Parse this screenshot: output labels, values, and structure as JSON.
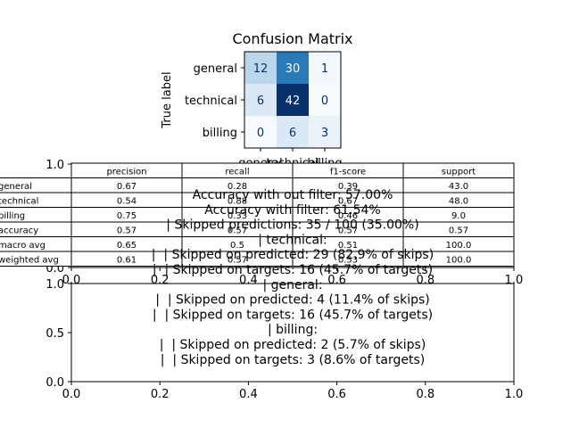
{
  "chart_data": [
    {
      "type": "heatmap",
      "title": "Confusion Matrix",
      "ylabel": "True label",
      "row_labels": [
        "general",
        "technical",
        "billing"
      ],
      "col_labels": [
        "general",
        "technical",
        "billing"
      ],
      "values": [
        [
          12,
          30,
          1
        ],
        [
          6,
          42,
          0
        ],
        [
          0,
          6,
          3
        ]
      ],
      "vmin": 0,
      "vmax": 42
    },
    {
      "type": "table",
      "columns": [
        "precision",
        "recall",
        "f1-score",
        "support"
      ],
      "rows": [
        {
          "label": "general",
          "cells": [
            "0.67",
            "0.28",
            "0.39",
            "43.0"
          ]
        },
        {
          "label": "technical",
          "cells": [
            "0.54",
            "0.88",
            "0.67",
            "48.0"
          ]
        },
        {
          "label": "billing",
          "cells": [
            "0.75",
            "0.33",
            "0.46",
            "9.0"
          ]
        },
        {
          "label": "accuracy",
          "cells": [
            "0.57",
            "0.57",
            "0.57",
            "0.57"
          ]
        },
        {
          "label": "macro avg",
          "cells": [
            "0.65",
            "0.5",
            "0.51",
            "100.0"
          ]
        },
        {
          "label": "weighted avg",
          "cells": [
            "0.61",
            "0.57",
            "0.53",
            "100.0"
          ]
        }
      ],
      "axis_xticks": [
        "0.0",
        "0.2",
        "0.4",
        "0.6",
        "0.8",
        "1.0"
      ],
      "axis_yticks": [
        "0.0",
        "0.5",
        "1.0"
      ]
    },
    {
      "type": "text",
      "lines": [
        "Accuracy with out filter: 57.00%",
        "Accuracy with filter: 61.54%",
        "| Skipped predictions: 35 / 100 (35.00%)",
        "| technical:",
        "|  | Skipped on predicted: 29 (82.9% of skips)",
        "|  | Skipped on targets: 16 (45.7% of targets)",
        "| general:",
        "|  | Skipped on predicted: 4 (11.4% of skips)",
        "|  | Skipped on targets: 16 (45.7% of targets)",
        "| billing:",
        "|  | Skipped on predicted: 2 (5.7% of skips)",
        "|  | Skipped on targets: 3 (8.6% of targets)"
      ],
      "axis_xticks": [
        "0.0",
        "0.2",
        "0.4",
        "0.6",
        "0.8",
        "1.0"
      ],
      "axis_yticks": [
        "0.0",
        "0.5",
        "1.0"
      ]
    }
  ]
}
